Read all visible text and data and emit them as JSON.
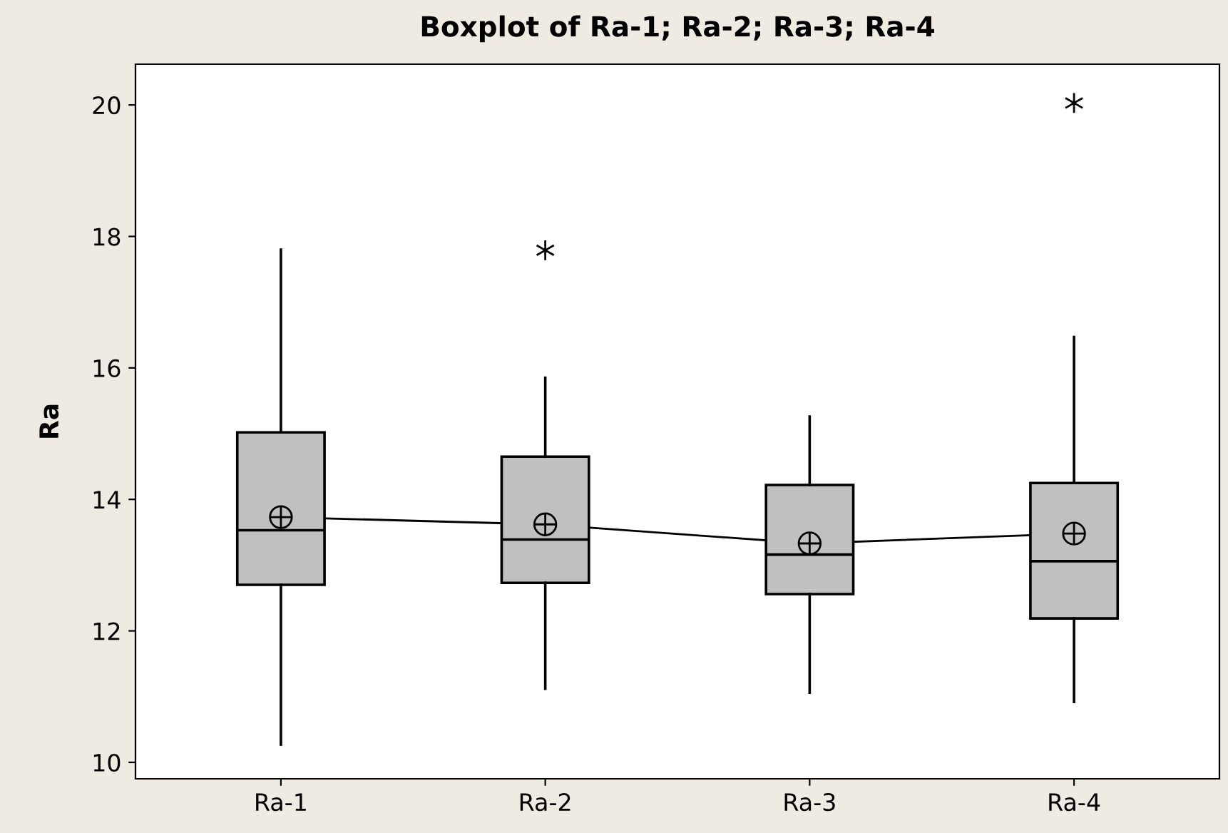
{
  "chart_data": {
    "type": "box",
    "title": "Boxplot of Ra-1; Ra-2; Ra-3; Ra-4",
    "ylabel": "Ra",
    "categories": [
      "Ra-1",
      "Ra-2",
      "Ra-3",
      "Ra-4"
    ],
    "series": [
      {
        "color": "#c0c0c0",
        "boxes": [
          {
            "low": 10.27,
            "q1": 12.7,
            "median": 13.53,
            "q3": 15.02,
            "high": 17.8,
            "mean": 13.73
          },
          {
            "low": 11.12,
            "q1": 12.73,
            "median": 13.39,
            "q3": 14.65,
            "high": 15.85,
            "mean": 13.62,
            "outliers": [
              17.79
            ]
          },
          {
            "low": 11.06,
            "q1": 12.56,
            "median": 13.16,
            "q3": 14.22,
            "high": 15.26,
            "mean": 13.33
          },
          {
            "low": 10.92,
            "q1": 12.19,
            "median": 13.06,
            "q3": 14.25,
            "high": 16.47,
            "mean": 13.48,
            "outliers": [
              20.03
            ]
          }
        ]
      },
      {
        "type": "line",
        "color": "#000000",
        "values": [
          13.73,
          13.62,
          13.33,
          13.48
        ],
        "line_style": "solid"
      }
    ],
    "ylim": [
      9.75,
      20.62
    ],
    "yticks": [
      10,
      12,
      14,
      16,
      18,
      20
    ],
    "grid": false,
    "legend": false
  }
}
